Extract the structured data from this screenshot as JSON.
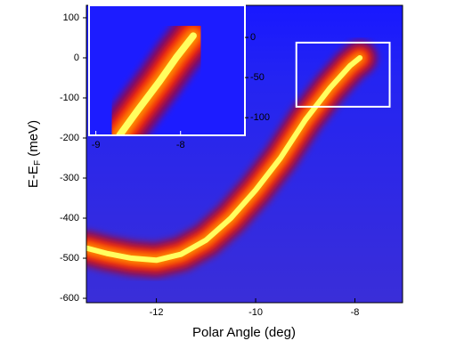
{
  "chart_data": [
    {
      "type": "heatmap-band",
      "x_label": "Polar Angle (deg)",
      "y_label_parts": [
        "E-E",
        "F",
        " (meV)"
      ],
      "xlim": [
        -13.41,
        -7.04
      ],
      "ylim": [
        -611,
        131
      ],
      "xticks": [
        -12,
        -10,
        -8
      ],
      "yticks": [
        100,
        0,
        -100,
        -200,
        -300,
        -400,
        -500,
        -600
      ],
      "x": [
        -13.4,
        -13.0,
        -12.5,
        -12.0,
        -11.5,
        -11.0,
        -10.5,
        -10.0,
        -9.5,
        -9.0,
        -8.5,
        -8.1,
        -7.9
      ],
      "values": [
        -475,
        -488,
        -500,
        -505,
        -490,
        -455,
        -400,
        -330,
        -250,
        -155,
        -75,
        -20,
        0
      ],
      "highlight_box": {
        "x": [
          -9.18,
          -7.3
        ],
        "y": [
          -122,
          38
        ]
      }
    },
    {
      "type": "heatmap-band",
      "xlim": [
        -9.08,
        -7.24
      ],
      "ylim": [
        -122,
        40
      ],
      "xticks": [
        -9,
        -8
      ],
      "yticks": [
        0,
        -50,
        -100
      ],
      "x": [
        -8.72,
        -8.5,
        -8.25,
        -8.05,
        -7.85
      ],
      "values": [
        -122,
        -90,
        -55,
        -25,
        2
      ]
    }
  ]
}
